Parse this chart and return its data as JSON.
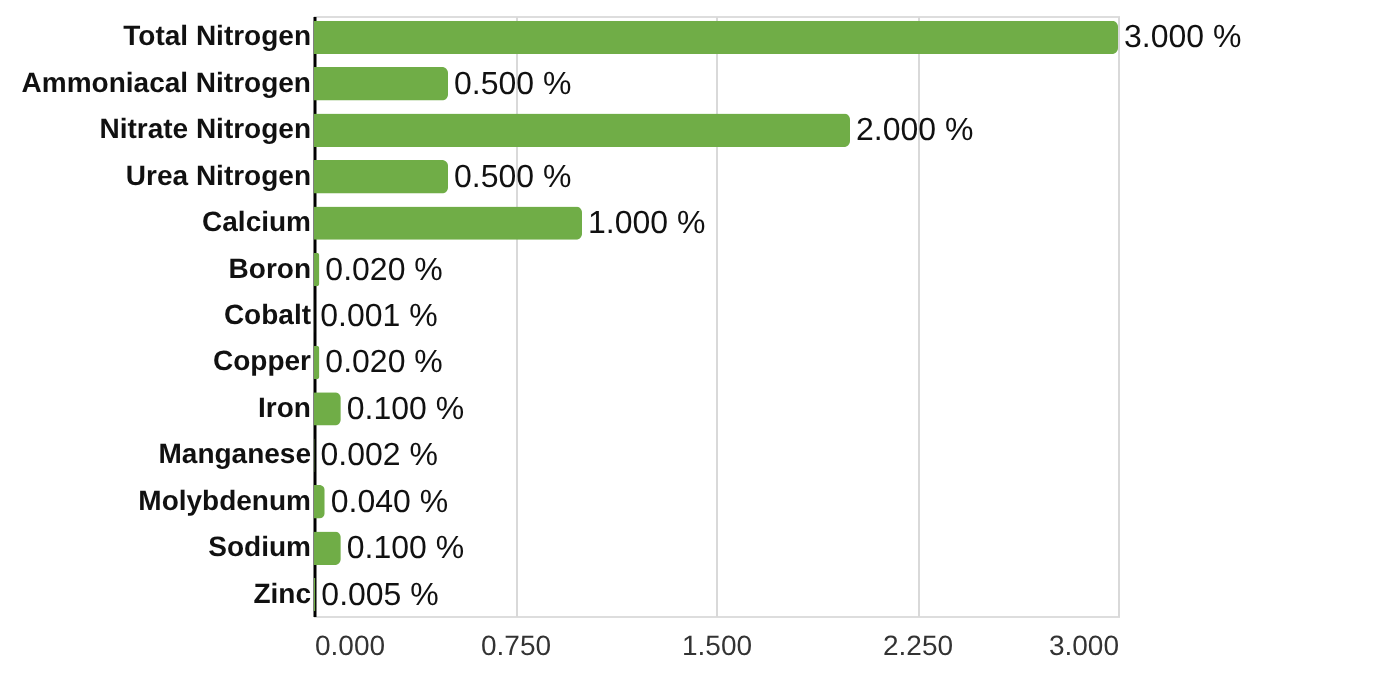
{
  "chart_data": {
    "type": "bar",
    "orientation": "horizontal",
    "categories": [
      "Total Nitrogen",
      "Ammoniacal Nitrogen",
      "Nitrate Nitrogen",
      "Urea Nitrogen",
      "Calcium",
      "Boron",
      "Cobalt",
      "Copper",
      "Iron",
      "Manganese",
      "Molybdenum",
      "Sodium",
      "Zinc"
    ],
    "values": [
      3.0,
      0.5,
      2.0,
      0.5,
      1.0,
      0.02,
      0.001,
      0.02,
      0.1,
      0.002,
      0.04,
      0.1,
      0.005
    ],
    "value_labels": [
      "3.000 %",
      "0.500 %",
      "2.000 %",
      "0.500 %",
      "1.000 %",
      "0.020 %",
      "0.001 %",
      "0.020 %",
      "0.100 %",
      "0.002 %",
      "0.040 %",
      "0.100 %",
      "0.005 %"
    ],
    "color": "#70ad47",
    "xlim": [
      0,
      3
    ],
    "xticks": [
      {
        "value": 0,
        "label": "0.000"
      },
      {
        "value": 0.75,
        "label": "0.750"
      },
      {
        "value": 1.5,
        "label": "1.500"
      },
      {
        "value": 2.25,
        "label": "2.250"
      },
      {
        "value": 3,
        "label": "3.000"
      }
    ],
    "grid": "x"
  }
}
